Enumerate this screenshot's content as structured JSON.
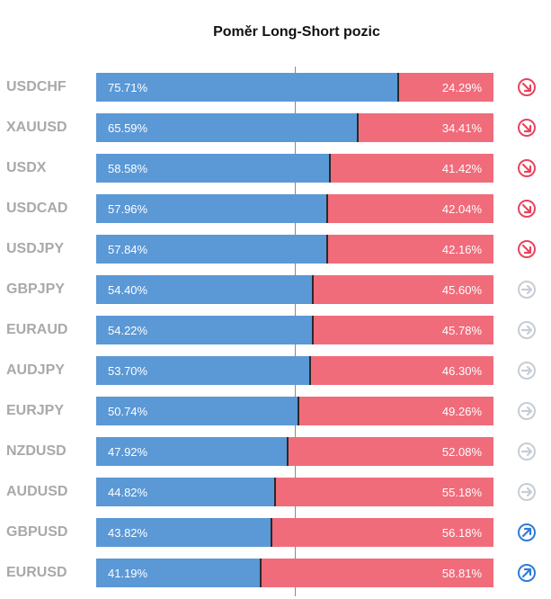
{
  "title": "Poměr Long-Short pozic",
  "colors": {
    "long": "#5b98d6",
    "short": "#f06c7b",
    "down": "#e8445f",
    "neutral": "#c7ccd6",
    "up": "#2f7bd9"
  },
  "chart_data": {
    "type": "bar",
    "orientation": "horizontal-stacked-100",
    "title": "Poměr Long-Short pozic",
    "series_long_color": "#5b98d6",
    "series_short_color": "#f06c7b",
    "rows": [
      {
        "pair": "USDCHF",
        "long": 75.71,
        "short": 24.29,
        "long_label": "75.71%",
        "short_label": "24.29%",
        "trend": "down"
      },
      {
        "pair": "XAUUSD",
        "long": 65.59,
        "short": 34.41,
        "long_label": "65.59%",
        "short_label": "34.41%",
        "trend": "down"
      },
      {
        "pair": "USDX",
        "long": 58.58,
        "short": 41.42,
        "long_label": "58.58%",
        "short_label": "41.42%",
        "trend": "down"
      },
      {
        "pair": "USDCAD",
        "long": 57.96,
        "short": 42.04,
        "long_label": "57.96%",
        "short_label": "42.04%",
        "trend": "down"
      },
      {
        "pair": "USDJPY",
        "long": 57.84,
        "short": 42.16,
        "long_label": "57.84%",
        "short_label": "42.16%",
        "trend": "down"
      },
      {
        "pair": "GBPJPY",
        "long": 54.4,
        "short": 45.6,
        "long_label": "54.40%",
        "short_label": "45.60%",
        "trend": "neutral"
      },
      {
        "pair": "EURAUD",
        "long": 54.22,
        "short": 45.78,
        "long_label": "54.22%",
        "short_label": "45.78%",
        "trend": "neutral"
      },
      {
        "pair": "AUDJPY",
        "long": 53.7,
        "short": 46.3,
        "long_label": "53.70%",
        "short_label": "46.30%",
        "trend": "neutral"
      },
      {
        "pair": "EURJPY",
        "long": 50.74,
        "short": 49.26,
        "long_label": "50.74%",
        "short_label": "49.26%",
        "trend": "neutral"
      },
      {
        "pair": "NZDUSD",
        "long": 47.92,
        "short": 52.08,
        "long_label": "47.92%",
        "short_label": "52.08%",
        "trend": "neutral"
      },
      {
        "pair": "AUDUSD",
        "long": 44.82,
        "short": 55.18,
        "long_label": "44.82%",
        "short_label": "55.18%",
        "trend": "neutral"
      },
      {
        "pair": "GBPUSD",
        "long": 43.82,
        "short": 56.18,
        "long_label": "43.82%",
        "short_label": "56.18%",
        "trend": "up"
      },
      {
        "pair": "EURUSD",
        "long": 41.19,
        "short": 58.81,
        "long_label": "41.19%",
        "short_label": "58.81%",
        "trend": "up"
      }
    ]
  }
}
